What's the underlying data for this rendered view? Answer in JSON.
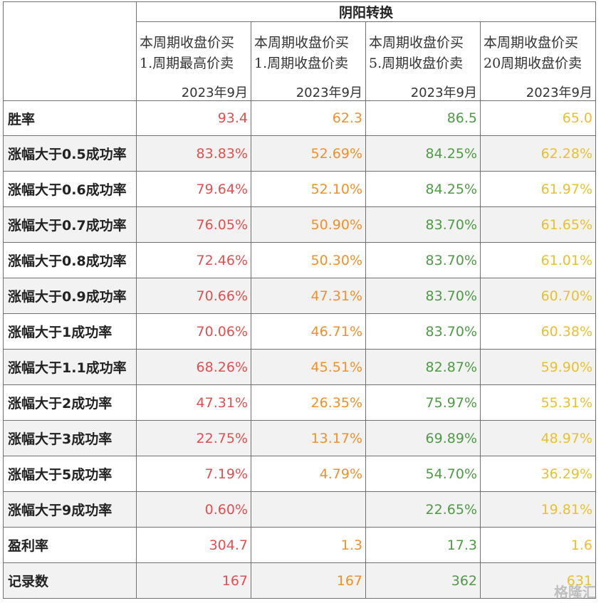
{
  "table": {
    "group_title": "阴阳转换",
    "columns": [
      {
        "line1": "本周期收盘价买",
        "line2": "1.周期最高价卖",
        "date": "2023年9月",
        "color": "#e05050"
      },
      {
        "line1": "本周期收盘价买",
        "line2": "1.周期收盘价卖",
        "date": "2023年9月",
        "color": "#f0902a"
      },
      {
        "line1": "本周期收盘价买",
        "line2": "5.周期收盘价卖",
        "date": "2023年9月",
        "color": "#4e9a45"
      },
      {
        "line1": "本周期收盘价买",
        "line2": "20周期收盘价卖",
        "date": "2023年9月",
        "color": "#e8c030"
      }
    ],
    "rows": [
      {
        "label": "胜率",
        "values": [
          "93.4",
          "62.3",
          "86.5",
          "65.0"
        ]
      },
      {
        "label": "涨幅大于0.5成功率",
        "values": [
          "83.83%",
          "52.69%",
          "84.25%",
          "62.28%"
        ]
      },
      {
        "label": "涨幅大于0.6成功率",
        "values": [
          "79.64%",
          "52.10%",
          "84.25%",
          "61.97%"
        ]
      },
      {
        "label": "涨幅大于0.7成功率",
        "values": [
          "76.05%",
          "50.90%",
          "83.70%",
          "61.65%"
        ]
      },
      {
        "label": "涨幅大于0.8成功率",
        "values": [
          "72.46%",
          "50.30%",
          "83.70%",
          "61.01%"
        ]
      },
      {
        "label": "涨幅大于0.9成功率",
        "values": [
          "70.66%",
          "47.31%",
          "83.70%",
          "60.70%"
        ]
      },
      {
        "label": "涨幅大于1成功率",
        "values": [
          "70.06%",
          "46.71%",
          "83.70%",
          "60.38%"
        ]
      },
      {
        "label": "涨幅大于1.1成功率",
        "values": [
          "68.26%",
          "45.51%",
          "82.87%",
          "59.90%"
        ]
      },
      {
        "label": "涨幅大于2成功率",
        "values": [
          "47.31%",
          "26.35%",
          "75.97%",
          "55.31%"
        ]
      },
      {
        "label": "涨幅大于3成功率",
        "values": [
          "22.75%",
          "13.17%",
          "69.89%",
          "48.97%"
        ]
      },
      {
        "label": "涨幅大于5成功率",
        "values": [
          "7.19%",
          "4.79%",
          "54.70%",
          "36.29%"
        ]
      },
      {
        "label": "涨幅大于9成功率",
        "values": [
          "0.60%",
          "",
          "22.65%",
          "19.81%"
        ]
      },
      {
        "label": "盈利率",
        "values": [
          "304.7",
          "1.3",
          "17.3",
          "1.6"
        ]
      },
      {
        "label": "记录数",
        "values": [
          "167",
          "167",
          "362",
          "631"
        ]
      }
    ]
  },
  "watermark": "格隆汇"
}
